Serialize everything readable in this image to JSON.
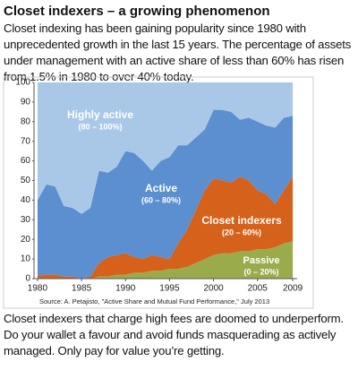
{
  "header": {
    "title": "Closet indexers – a growing phenomenon",
    "intro": "Closet indexing has been gaining popularity since 1980 with unprecedented growth in the last 15 years. The percentage of assets under management with an active share of less than 60% has risen from 1.5% in 1980 to over 40% today."
  },
  "chart_data": {
    "type": "stacked-area",
    "x": [
      1980,
      1981,
      1982,
      1983,
      1984,
      1985,
      1986,
      1987,
      1988,
      1989,
      1990,
      1991,
      1992,
      1993,
      1994,
      1995,
      1996,
      1997,
      1998,
      1999,
      2000,
      2001,
      2002,
      2003,
      2004,
      2005,
      2006,
      2007,
      2008,
      2009
    ],
    "series": [
      {
        "name": "Passive",
        "range": "(0 – 20%)",
        "color": "#9aab4c",
        "values": [
          0,
          0,
          0,
          0,
          0,
          0,
          0,
          1,
          1,
          2,
          2,
          3,
          3,
          4,
          4,
          5,
          5,
          6,
          8,
          10,
          12,
          13,
          13,
          14,
          14,
          15,
          15,
          16,
          18,
          19
        ]
      },
      {
        "name": "Closet indexers",
        "range": "(20 – 60%)",
        "color": "#d5611a",
        "values": [
          1.5,
          2,
          2,
          1,
          1,
          0,
          1,
          7,
          10,
          10,
          11,
          8,
          7,
          8,
          7,
          5,
          13,
          19,
          27,
          35,
          39,
          37,
          36,
          38,
          36,
          30,
          28,
          22,
          27,
          33
        ]
      },
      {
        "name": "Active",
        "range": "(60 – 80%)",
        "color": "#5b8fcf",
        "values": [
          38.5,
          46,
          45,
          36,
          35,
          33,
          35,
          47,
          43,
          45,
          52,
          53,
          50,
          43,
          49,
          52,
          50,
          43,
          37,
          31,
          35,
          36,
          36,
          29,
          32,
          35,
          35,
          39,
          37,
          31
        ]
      },
      {
        "name": "Highly active",
        "range": "(80 – 100%)",
        "color": "#a9c8e8",
        "values": [
          60,
          52,
          53,
          63,
          64,
          67,
          64,
          45,
          46,
          43,
          35,
          36,
          40,
          45,
          40,
          38,
          32,
          32,
          28,
          24,
          14,
          14,
          15,
          19,
          18,
          20,
          22,
          23,
          18,
          17
        ]
      }
    ],
    "xlim": [
      1979.6,
      2009.5
    ],
    "xticks": [
      1980,
      1985,
      1990,
      1995,
      2000,
      2005,
      2009
    ],
    "ylim": [
      0,
      100
    ],
    "yticks": [
      0,
      10,
      20,
      30,
      40,
      50,
      60,
      70,
      80,
      90,
      100
    ],
    "source": "Source: A. Petajisto, \"Active Share and Mutual Fund Performance,\" July 2013"
  },
  "footer": {
    "text": "Closet indexers that charge high fees are doomed to underperform. Do your wallet a favour and avoid funds masquerading as actively managed. Only pay for value you’re getting."
  }
}
